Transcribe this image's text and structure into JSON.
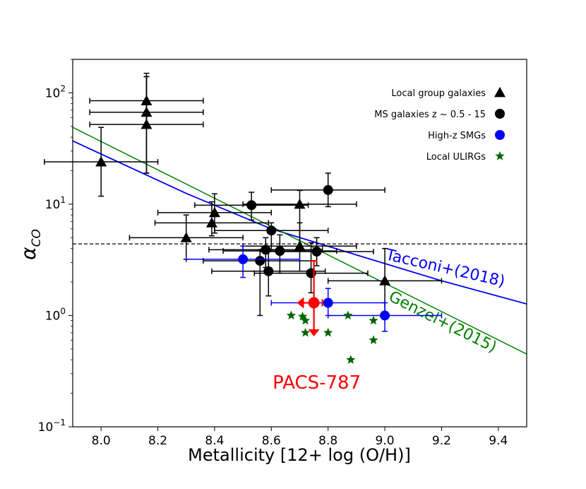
{
  "chart_data": {
    "type": "scatter",
    "title": "",
    "xlabel": "Metallicity [12+ log (O/H)]",
    "ylabel": "α_CO",
    "ylabel_main": "α",
    "ylabel_sub": "CO",
    "x_scale": "linear",
    "y_scale": "log",
    "xlim": [
      7.9,
      9.5
    ],
    "ylim": [
      0.1,
      200
    ],
    "x_ticks": [
      8.0,
      8.2,
      8.4,
      8.6,
      8.8,
      9.0,
      9.2,
      9.4
    ],
    "x_tick_labels": [
      "8.0",
      "8.2",
      "8.4",
      "8.6",
      "8.8",
      "9.0",
      "9.2",
      "9.4"
    ],
    "y_ticks": [
      {
        "value": 0.1,
        "base": "10",
        "exp": "−1"
      },
      {
        "value": 1,
        "base": "10",
        "exp": "0"
      },
      {
        "value": 10,
        "base": "10",
        "exp": "1"
      },
      {
        "value": 100,
        "base": "10",
        "exp": "2"
      }
    ],
    "hline": {
      "y": 4.4,
      "style": "dashed",
      "color": "#000000"
    },
    "lines": [
      {
        "name": "Tacconi+(2018)",
        "color": "#0000ff",
        "points": [
          [
            7.9,
            37
          ],
          [
            8.3,
            12.5
          ],
          [
            8.6,
            6.0
          ],
          [
            8.9,
            3.5
          ],
          [
            9.2,
            2.05
          ],
          [
            9.5,
            1.27
          ]
        ]
      },
      {
        "name": "Genzel+(2015)",
        "color": "#008000",
        "points": [
          [
            7.9,
            49
          ],
          [
            9.5,
            0.45
          ]
        ]
      }
    ],
    "line_labels": [
      {
        "text": "Tacconi+(2018)",
        "x": 9.0,
        "y": 3.2,
        "color": "#0000ff"
      },
      {
        "text": "Genzel+(2015)",
        "x": 9.01,
        "y": 1.38,
        "color": "#008000"
      }
    ],
    "series": [
      {
        "name": "Local group galaxies",
        "marker": "triangle",
        "color": "#000000",
        "points": [
          {
            "x": 8.16,
            "y": 85,
            "xerr": 0.2,
            "ylo": 50,
            "yhi": 150
          },
          {
            "x": 8.16,
            "y": 67,
            "xerr": 0.2,
            "ylo": 19,
            "yhi": 140
          },
          {
            "x": 8.16,
            "y": 52,
            "xerr": 0.2,
            "ylo": 19,
            "yhi": 140
          },
          {
            "x": 8.0,
            "y": 24,
            "xerr": 0.2,
            "ylo": 11.8,
            "yhi": 49
          },
          {
            "x": 8.4,
            "y": 8.4,
            "xerr": 0.2,
            "ylo": 5.5,
            "yhi": 12.4
          },
          {
            "x": 8.39,
            "y": 6.8,
            "xerr": 0.2,
            "ylo": 5.2,
            "yhi": 10.5
          },
          {
            "x": 8.3,
            "y": 5.0,
            "xerr": 0.2,
            "ylo": 3.2,
            "yhi": 8.0
          },
          {
            "x": 8.7,
            "y": 10.0,
            "xerr": 0.2,
            "ylo": 4.2,
            "yhi": 13.3
          },
          {
            "x": 8.7,
            "y": 4.2,
            "xerr": 0.2,
            "ylo": 2.5,
            "yhi": 6.8
          },
          {
            "x": 9.0,
            "y": 2.05,
            "xerr": 0.2,
            "ylo": 1.05,
            "yhi": 4.0
          }
        ]
      },
      {
        "name": "MS galaxies z ~ 0.5 - 15",
        "marker": "circle",
        "color": "#000000",
        "points": [
          {
            "x": 8.8,
            "y": 13.4,
            "xerr": 0.2,
            "ylo": 9.5,
            "yhi": 19.0
          },
          {
            "x": 8.53,
            "y": 9.8,
            "xerr": 0.2,
            "ylo": 7.2,
            "yhi": 12.8
          },
          {
            "x": 8.6,
            "y": 5.8,
            "xerr": 0.2,
            "ylo": 3.9,
            "yhi": 6.8
          },
          {
            "x": 8.58,
            "y": 3.9,
            "xerr": 0.2,
            "ylo": 2.7,
            "yhi": 5.0
          },
          {
            "x": 8.63,
            "y": 3.8,
            "xerr": 0.2,
            "ylo": 2.4,
            "yhi": 5.3
          },
          {
            "x": 8.76,
            "y": 3.75,
            "xerr": 0.2,
            "ylo": 2.8,
            "yhi": 5.0
          },
          {
            "x": 8.56,
            "y": 3.1,
            "xerr": 0.2,
            "ylo": 1.0,
            "yhi": 3.9
          },
          {
            "x": 8.59,
            "y": 2.5,
            "xerr": 0.2,
            "ylo": 1.5,
            "yhi": 3.9
          },
          {
            "x": 8.74,
            "y": 2.4,
            "xerr": 0.2,
            "ylo": 1.6,
            "yhi": 4.5
          }
        ]
      },
      {
        "name": "High-z SMGs",
        "marker": "circle",
        "color": "#0000ff",
        "points": [
          {
            "x": 8.5,
            "y": 3.2,
            "xerr": 0.2,
            "ylo": 2.2,
            "yhi": 4.2
          },
          {
            "x": 8.8,
            "y": 1.3,
            "xerr": 0.2,
            "ylo": 1.0,
            "yhi": 1.75
          },
          {
            "x": 9.0,
            "y": 1.0,
            "xerr": 0.2,
            "ylo": 0.72,
            "yhi": 1.3
          }
        ]
      },
      {
        "name": "Local ULIRGs",
        "marker": "star",
        "color": "#006400",
        "points": [
          {
            "x": 8.67,
            "y": 1.0
          },
          {
            "x": 8.71,
            "y": 0.98
          },
          {
            "x": 8.72,
            "y": 0.9
          },
          {
            "x": 8.72,
            "y": 0.7
          },
          {
            "x": 8.8,
            "y": 0.7
          },
          {
            "x": 8.87,
            "y": 1.0
          },
          {
            "x": 8.96,
            "y": 0.9
          },
          {
            "x": 8.96,
            "y": 0.6
          },
          {
            "x": 8.88,
            "y": 0.4
          }
        ]
      }
    ],
    "highlight": {
      "name": "PACS-787",
      "label": "PACS-787",
      "color": "#ff0000",
      "x": 8.75,
      "y": 1.3,
      "upper_limit_bottom": 0.65,
      "upper_limit_top": 3.1,
      "left_arrow_x": 8.69,
      "label_x": 8.76,
      "label_y": 0.22
    },
    "legend": {
      "position": "top-right",
      "entries": [
        {
          "label": "Local group galaxies",
          "marker": "triangle",
          "color": "#000000"
        },
        {
          "label": "MS galaxies z ~ 0.5 - 15",
          "marker": "circle",
          "color": "#000000"
        },
        {
          "label": "High-z SMGs",
          "marker": "circle",
          "color": "#0000ff"
        },
        {
          "label": "Local ULIRGs",
          "marker": "star",
          "color": "#006400"
        }
      ]
    }
  }
}
